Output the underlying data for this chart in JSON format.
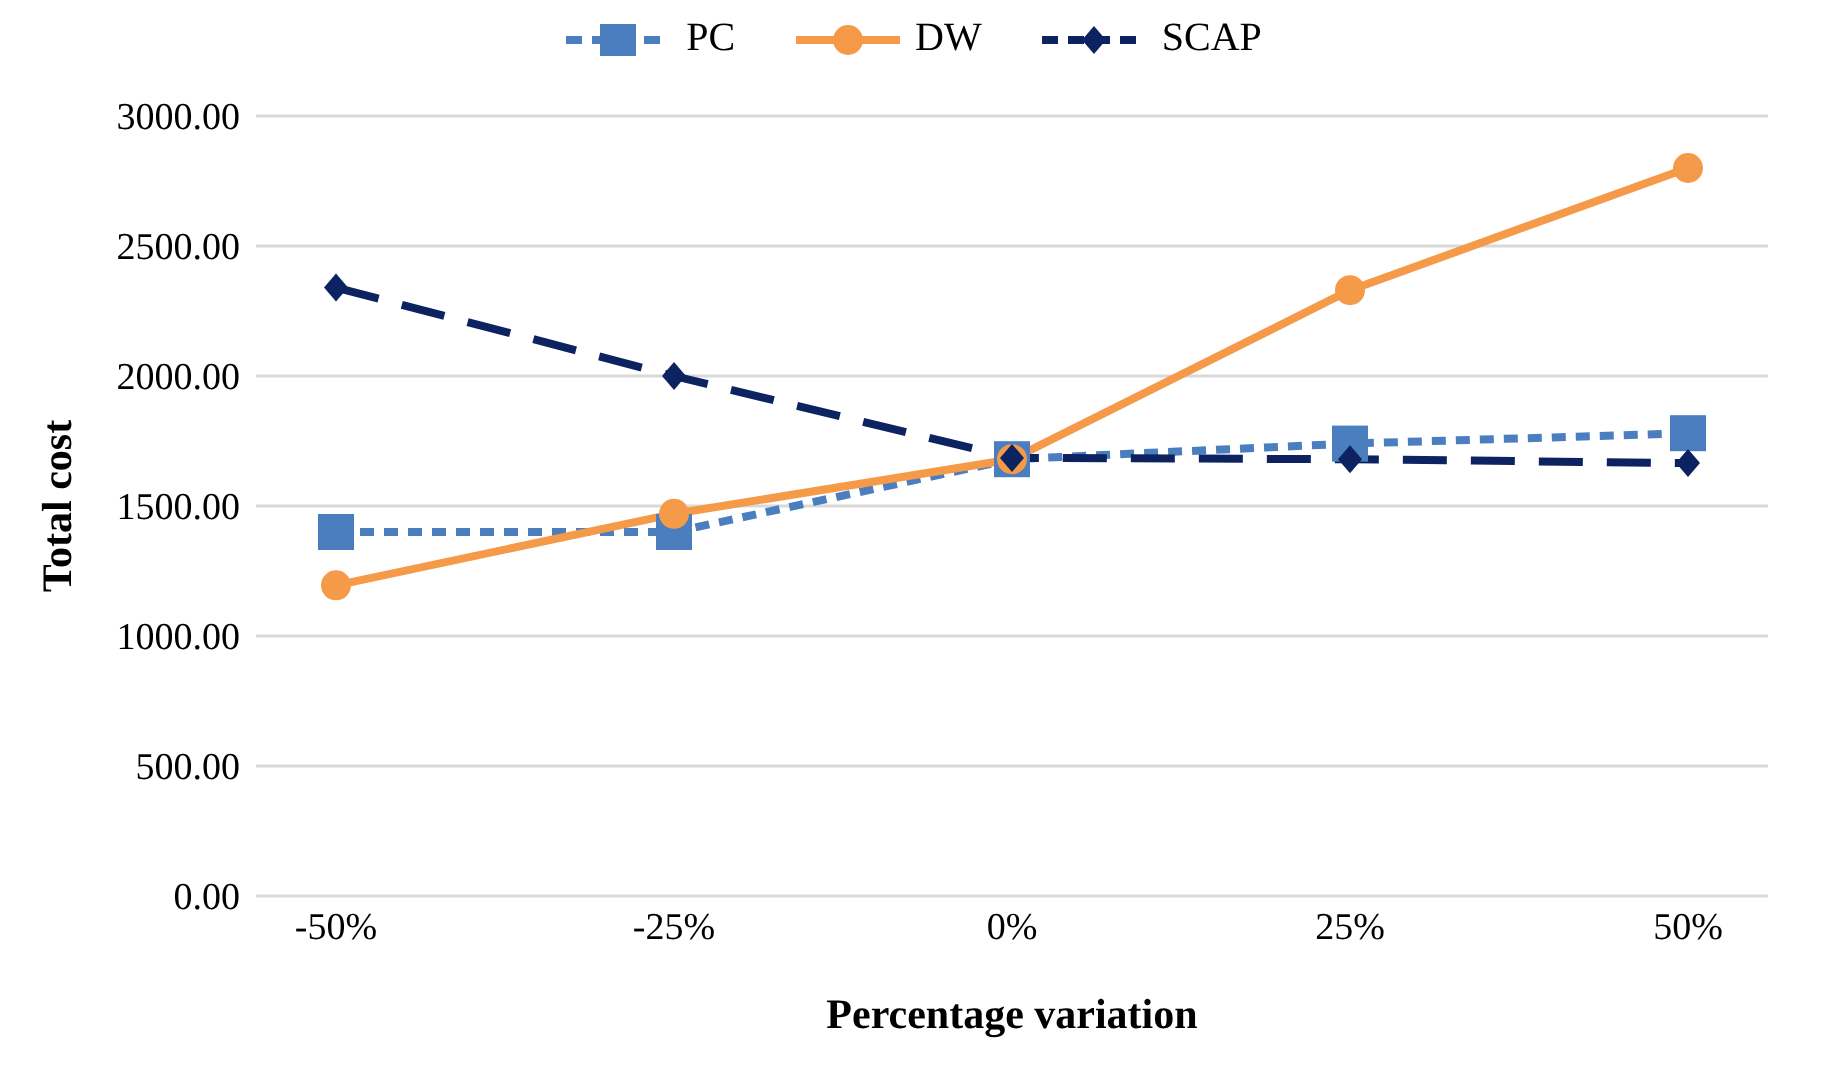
{
  "chart_data": {
    "type": "line",
    "xlabel": "Percentage variation",
    "ylabel": "Total cost",
    "categories": [
      "-50%",
      "-25%",
      "0%",
      "25%",
      "50%"
    ],
    "series": [
      {
        "name": "PC",
        "color": "#4a7ebf",
        "marker": "square",
        "line_style": "dashed",
        "values": [
          1400,
          1400,
          1680,
          1740,
          1780
        ]
      },
      {
        "name": "DW",
        "color": "#f59a48",
        "marker": "circle",
        "line_style": "solid",
        "values": [
          1195,
          1470,
          1680,
          2330,
          2800
        ]
      },
      {
        "name": "SCAP",
        "color": "#0d2260",
        "marker": "diamond",
        "line_style": "longdash",
        "values": [
          2340,
          2000,
          1685,
          1680,
          1665
        ]
      }
    ],
    "ylim": [
      0,
      3000
    ],
    "yticks": [
      {
        "value": 0,
        "label": "0.00"
      },
      {
        "value": 500,
        "label": "500.00"
      },
      {
        "value": 1000,
        "label": "1000.00"
      },
      {
        "value": 1500,
        "label": "1500.00"
      },
      {
        "value": 2000,
        "label": "2000.00"
      },
      {
        "value": 2500,
        "label": "2500.00"
      },
      {
        "value": 3000,
        "label": "3000.00"
      }
    ],
    "grid": "y",
    "legend": "top"
  }
}
